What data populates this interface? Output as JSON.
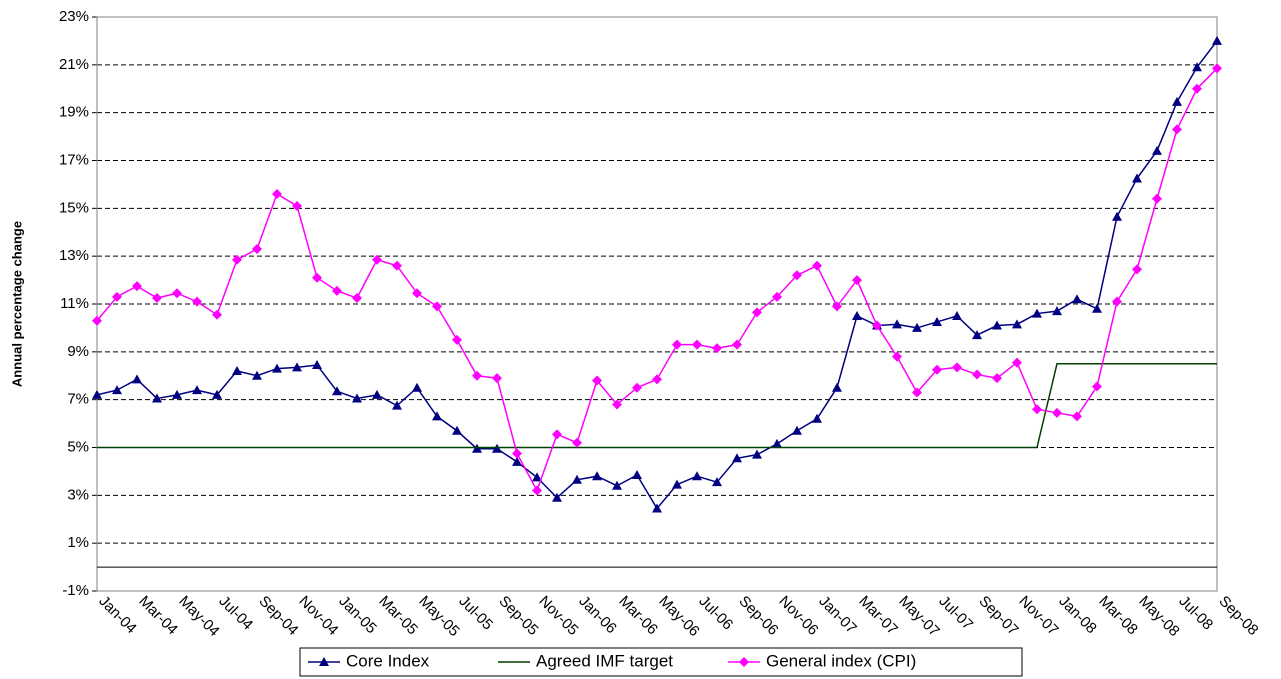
{
  "chart_data": {
    "type": "line",
    "y_label": "Annual percentage change",
    "categories": [
      "Jan-04",
      null,
      "Mar-04",
      null,
      "May-04",
      null,
      "Jul-04",
      null,
      "Sep-04",
      null,
      "Nov-04",
      null,
      "Jan-05",
      null,
      "Mar-05",
      null,
      "May-05",
      null,
      "Jul-05",
      null,
      "Sep-05",
      null,
      "Nov-05",
      null,
      "Jan-06",
      null,
      "Mar-06",
      null,
      "May-06",
      null,
      "Jul-06",
      null,
      "Sep-06",
      null,
      "Nov-06",
      null,
      "Jan-07",
      null,
      "Mar-07",
      null,
      "May-07",
      null,
      "Jul-07",
      null,
      "Sep-07",
      null,
      "Nov-07",
      null,
      "Jan-08",
      null,
      "Mar-08",
      null,
      "May-08",
      null,
      "Jul-08",
      null,
      "Sep-08"
    ],
    "series": [
      {
        "name": "Core Index",
        "color": "#000080",
        "marker": "triangle",
        "values": [
          7.2,
          7.4,
          7.85,
          7.05,
          7.2,
          7.4,
          7.2,
          8.2,
          8.0,
          8.3,
          8.35,
          8.45,
          7.35,
          7.05,
          7.2,
          6.75,
          7.5,
          6.3,
          5.7,
          4.95,
          4.95,
          4.4,
          3.75,
          2.9,
          3.65,
          3.8,
          3.4,
          3.85,
          2.45,
          3.45,
          3.8,
          3.55,
          4.55,
          4.7,
          5.15,
          5.7,
          6.2,
          7.5,
          10.5,
          10.1,
          10.15,
          10.0,
          10.25,
          10.5,
          9.7,
          10.1,
          10.15,
          10.6,
          10.7,
          11.2,
          10.8,
          14.65,
          16.25,
          17.4,
          19.45,
          20.9,
          22.0
        ]
      },
      {
        "name": "Agreed IMF target",
        "color": "#004000",
        "marker": "none",
        "values": [
          5,
          5,
          5,
          5,
          5,
          5,
          5,
          5,
          5,
          5,
          5,
          5,
          5,
          5,
          5,
          5,
          5,
          5,
          5,
          5,
          5,
          5,
          5,
          5,
          5,
          5,
          5,
          5,
          5,
          5,
          5,
          5,
          5,
          5,
          5,
          5,
          5,
          5,
          5,
          5,
          5,
          5,
          5,
          5,
          5,
          5,
          5,
          5,
          8.5,
          8.5,
          8.5,
          8.5,
          8.5,
          8.5,
          8.5,
          8.5,
          8.5
        ]
      },
      {
        "name": "General index (CPI)",
        "color": "#ff00ff",
        "marker": "diamond",
        "values": [
          10.3,
          11.3,
          11.75,
          11.25,
          11.45,
          11.1,
          10.55,
          12.85,
          13.3,
          15.6,
          15.1,
          12.1,
          11.55,
          11.25,
          12.85,
          12.6,
          11.45,
          10.9,
          9.5,
          8.0,
          7.9,
          4.75,
          3.2,
          5.55,
          5.2,
          7.8,
          6.8,
          7.5,
          7.85,
          9.3,
          9.3,
          9.15,
          9.3,
          10.65,
          11.3,
          12.2,
          12.6,
          10.9,
          12.0,
          10.1,
          8.8,
          7.3,
          8.25,
          8.35,
          8.05,
          7.9,
          8.55,
          6.6,
          6.45,
          6.3,
          7.55,
          11.1,
          12.45,
          15.4,
          18.3,
          20.0,
          20.85
        ]
      }
    ],
    "ylim": [
      -1,
      23
    ],
    "yticks": [
      {
        "value": -1,
        "label": "-1%"
      },
      {
        "value": 1,
        "label": "1%"
      },
      {
        "value": 3,
        "label": "3%"
      },
      {
        "value": 5,
        "label": "5%"
      },
      {
        "value": 7,
        "label": "7%"
      },
      {
        "value": 9,
        "label": "9%"
      },
      {
        "value": 11,
        "label": "11%"
      },
      {
        "value": 13,
        "label": "13%"
      },
      {
        "value": 15,
        "label": "15%"
      },
      {
        "value": 17,
        "label": "17%"
      },
      {
        "value": 19,
        "label": "19%"
      },
      {
        "value": 21,
        "label": "21%"
      },
      {
        "value": 23,
        "label": "23%"
      }
    ],
    "axis_crossing": 0,
    "grid": true,
    "legend": "bottom"
  }
}
